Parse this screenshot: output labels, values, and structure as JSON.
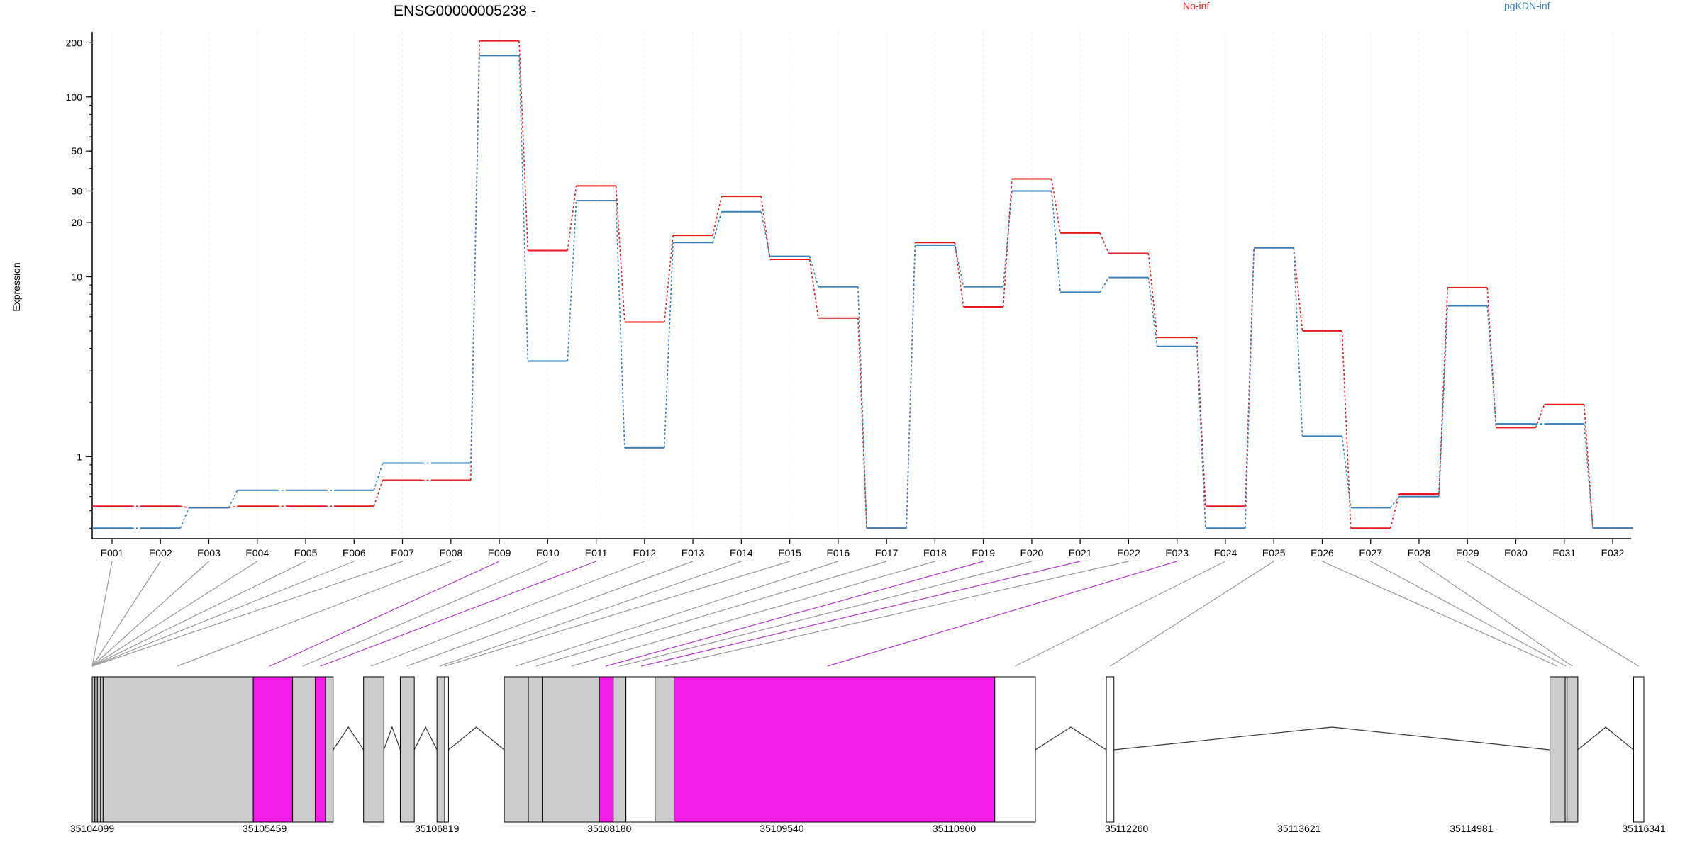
{
  "chart_data": {
    "type": "line",
    "title": "ENSG00000005238 -",
    "ylabel": "Expression",
    "y_scale": "log",
    "ylim": [
      0.35,
      230
    ],
    "y_ticks": [
      1,
      10,
      20,
      30,
      50,
      100,
      200
    ],
    "y_tick_labels": [
      "1",
      "10",
      "20",
      "30",
      "50",
      "100",
      "200"
    ],
    "grid": "vertical",
    "categories": [
      "E001",
      "E002",
      "E003",
      "E004",
      "E005",
      "E006",
      "E007",
      "E008",
      "E009",
      "E010",
      "E011",
      "E012",
      "E013",
      "E014",
      "E015",
      "E016",
      "E017",
      "E018",
      "E019",
      "E020",
      "E021",
      "E022",
      "E023",
      "E024",
      "E025",
      "E026",
      "E027",
      "E028",
      "E029",
      "E030",
      "E031",
      "E032"
    ],
    "series": [
      {
        "name": "No-inf",
        "color": "#e41a1c",
        "values": [
          0.53,
          0.53,
          0.52,
          0.53,
          0.53,
          0.53,
          0.74,
          0.74,
          205,
          14,
          32,
          5.6,
          17,
          28,
          12.5,
          5.9,
          0.4,
          15.5,
          6.8,
          35,
          17.5,
          13.5,
          4.6,
          0.53,
          14.5,
          5,
          0.4,
          0.62,
          8.7,
          1.45,
          1.95,
          0.4
        ]
      },
      {
        "name": "pgKDN-inf",
        "color": "#377eb8",
        "values": [
          0.4,
          0.4,
          0.52,
          0.65,
          0.65,
          0.65,
          0.92,
          0.92,
          170,
          3.4,
          26.5,
          1.12,
          15.5,
          23,
          13,
          8.8,
          0.4,
          15,
          8.8,
          30,
          8.2,
          9.9,
          4.1,
          0.4,
          14.5,
          1.3,
          0.52,
          0.6,
          6.9,
          1.52,
          1.52,
          0.4
        ]
      }
    ],
    "genome_axis": {
      "tick_labels": [
        "35104099",
        "35105459",
        "35106819",
        "35108180",
        "35109540",
        "35110900",
        "35112260",
        "35113621",
        "35114981",
        "35116341"
      ],
      "start": 35104099,
      "end": 35116341
    },
    "gene_model": {
      "exon_blocks": [
        {
          "start": 35104099,
          "end": 35104120,
          "fill": "gray",
          "exon": "E001"
        },
        {
          "start": 35104120,
          "end": 35104140,
          "fill": "gray",
          "exon": "E002"
        },
        {
          "start": 35104140,
          "end": 35104165,
          "fill": "gray",
          "exon": "E003"
        },
        {
          "start": 35104165,
          "end": 35104185,
          "fill": "gray",
          "exon": "E004"
        },
        {
          "start": 35104185,
          "end": 35105370,
          "fill": "gray",
          "exon": "E005"
        },
        {
          "start": 35105370,
          "end": 35105680,
          "fill": "magenta",
          "exon": "E006"
        },
        {
          "start": 35105680,
          "end": 35105860,
          "fill": "gray",
          "exon": "E007"
        },
        {
          "start": 35105860,
          "end": 35105940,
          "fill": "magenta",
          "exon": "E008"
        },
        {
          "start": 35105940,
          "end": 35106000,
          "fill": "gray",
          "exon": "E009"
        },
        {
          "start": 35106240,
          "end": 35106400,
          "fill": "gray",
          "exon": "E010"
        },
        {
          "start": 35106530,
          "end": 35106640,
          "fill": "gray",
          "exon": "E011"
        },
        {
          "start": 35106819,
          "end": 35106880,
          "fill": "gray",
          "exon": "E012"
        },
        {
          "start": 35106880,
          "end": 35106910,
          "fill": "white",
          "exon": "E013"
        },
        {
          "start": 35107350,
          "end": 35107540,
          "fill": "gray",
          "exon": "E014"
        },
        {
          "start": 35107540,
          "end": 35107650,
          "fill": "gray",
          "exon": "E015"
        },
        {
          "start": 35107650,
          "end": 35108100,
          "fill": "gray",
          "exon": "E016"
        },
        {
          "start": 35108100,
          "end": 35108210,
          "fill": "magenta",
          "exon": "E017"
        },
        {
          "start": 35108210,
          "end": 35108310,
          "fill": "gray",
          "exon": "E018"
        },
        {
          "start": 35108310,
          "end": 35108540,
          "fill": "white",
          "exon": "E019"
        },
        {
          "start": 35108540,
          "end": 35108690,
          "fill": "gray",
          "exon": "E020"
        },
        {
          "start": 35108690,
          "end": 35111220,
          "fill": "magenta",
          "exon": "E021"
        },
        {
          "start": 35111220,
          "end": 35111540,
          "fill": "white",
          "exon": "E022"
        },
        {
          "start": 35112100,
          "end": 35112160,
          "fill": "white",
          "exon": "E023"
        },
        {
          "start": 35115600,
          "end": 35115720,
          "fill": "gray",
          "exon": "E024"
        },
        {
          "start": 35115720,
          "end": 35115735,
          "fill": "gray",
          "exon": "E025"
        },
        {
          "start": 35115735,
          "end": 35115820,
          "fill": "gray",
          "exon": "E026"
        },
        {
          "start": 35116260,
          "end": 35116341,
          "fill": "white",
          "exon": "E027"
        }
      ],
      "introns": [
        [
          35106000,
          35106240
        ],
        [
          35106400,
          35106530
        ],
        [
          35106640,
          35106819
        ],
        [
          35106910,
          35107350
        ],
        [
          35111540,
          35112100
        ],
        [
          35112160,
          35115600
        ],
        [
          35115820,
          35116260
        ]
      ],
      "connectors": [
        {
          "exon": "E001",
          "pos": 35104099,
          "color": "gray"
        },
        {
          "exon": "E002",
          "pos": 35104099,
          "color": "gray"
        },
        {
          "exon": "E003",
          "pos": 35104099,
          "color": "gray"
        },
        {
          "exon": "E004",
          "pos": 35104099,
          "color": "gray"
        },
        {
          "exon": "E005",
          "pos": 35104099,
          "color": "gray"
        },
        {
          "exon": "E006",
          "pos": 35104099,
          "color": "gray"
        },
        {
          "exon": "E007",
          "pos": 35104099,
          "color": "gray"
        },
        {
          "exon": "E008",
          "pos": 35104770,
          "color": "gray"
        },
        {
          "exon": "E009",
          "pos": 35105500,
          "color": "magenta"
        },
        {
          "exon": "E010",
          "pos": 35105760,
          "color": "gray"
        },
        {
          "exon": "E011",
          "pos": 35105900,
          "color": "magenta"
        },
        {
          "exon": "E012",
          "pos": 35106300,
          "color": "gray"
        },
        {
          "exon": "E013",
          "pos": 35106580,
          "color": "gray"
        },
        {
          "exon": "E014",
          "pos": 35106840,
          "color": "gray"
        },
        {
          "exon": "E015",
          "pos": 35106880,
          "color": "gray"
        },
        {
          "exon": "E016",
          "pos": 35107440,
          "color": "gray"
        },
        {
          "exon": "E017",
          "pos": 35107600,
          "color": "gray"
        },
        {
          "exon": "E018",
          "pos": 35107880,
          "color": "gray"
        },
        {
          "exon": "E019",
          "pos": 35108150,
          "color": "magenta"
        },
        {
          "exon": "E020",
          "pos": 35108260,
          "color": "gray"
        },
        {
          "exon": "E021",
          "pos": 35108430,
          "color": "magenta"
        },
        {
          "exon": "E022",
          "pos": 35108620,
          "color": "gray"
        },
        {
          "exon": "E023",
          "pos": 35109900,
          "color": "magenta"
        },
        {
          "exon": "E024",
          "pos": 35111380,
          "color": "gray"
        },
        {
          "exon": "E025",
          "pos": 35112130,
          "color": "gray"
        },
        {
          "exon": "E026",
          "pos": 35115660,
          "color": "gray"
        },
        {
          "exon": "E027",
          "pos": 35115727,
          "color": "gray"
        },
        {
          "exon": "E028",
          "pos": 35115777,
          "color": "gray"
        },
        {
          "exon": "E029",
          "pos": 35116300,
          "color": "gray"
        }
      ]
    }
  }
}
